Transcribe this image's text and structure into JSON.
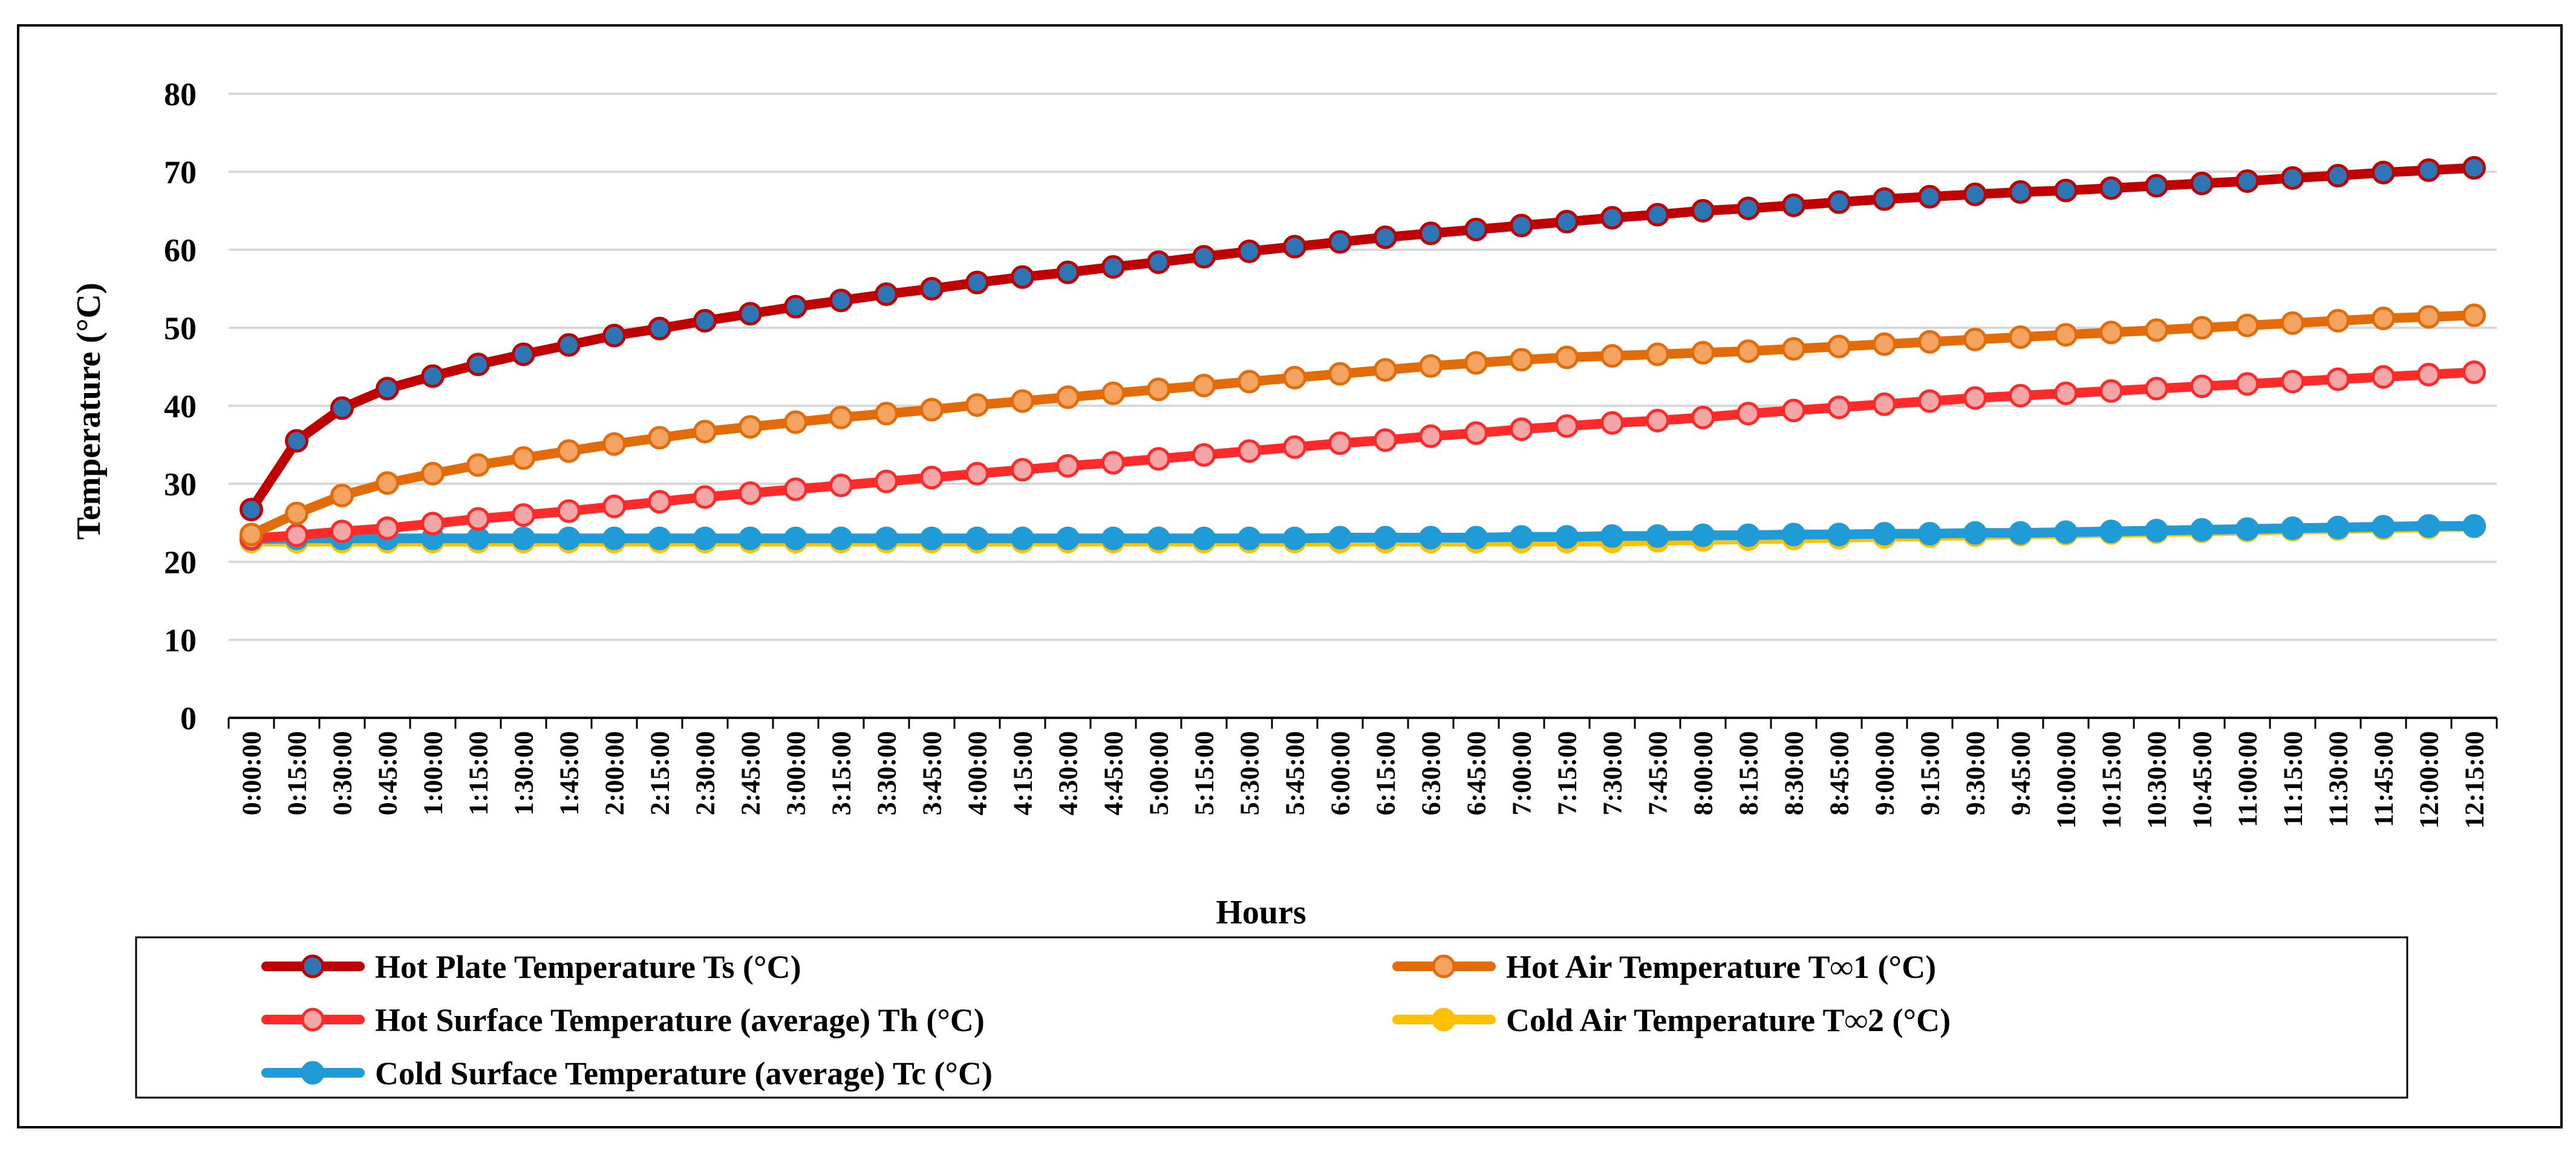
{
  "chart_data": {
    "type": "line",
    "title": "",
    "xlabel": "Hours",
    "ylabel": "Temperature (°C)",
    "ylim": [
      0,
      80
    ],
    "yticks": [
      0,
      10,
      20,
      30,
      40,
      50,
      60,
      70,
      80
    ],
    "grid": true,
    "legend_position": "bottom",
    "categories": [
      "0:00:00",
      "0:15:00",
      "0:30:00",
      "0:45:00",
      "1:00:00",
      "1:15:00",
      "1:30:00",
      "1:45:00",
      "2:00:00",
      "2:15:00",
      "2:30:00",
      "2:45:00",
      "3:00:00",
      "3:15:00",
      "3:30:00",
      "3:45:00",
      "4:00:00",
      "4:15:00",
      "4:30:00",
      "4:45:00",
      "5:00:00",
      "5:15:00",
      "5:30:00",
      "5:45:00",
      "6:00:00",
      "6:15:00",
      "6:30:00",
      "6:45:00",
      "7:00:00",
      "7:15:00",
      "7:30:00",
      "7:45:00",
      "8:00:00",
      "8:15:00",
      "8:30:00",
      "8:45:00",
      "9:00:00",
      "9:15:00",
      "9:30:00",
      "9:45:00",
      "10:00:00",
      "10:15:00",
      "10:30:00",
      "10:45:00",
      "11:00:00",
      "11:15:00",
      "11:30:00",
      "11:45:00",
      "12:00:00",
      "12:15:00"
    ],
    "series": [
      {
        "name": "Hot Plate Temperature Ts (°C)",
        "line_color": "#C00000",
        "marker_fill": "#2E75B6",
        "marker_stroke": "#C00000",
        "values": [
          26.7,
          35.5,
          39.7,
          42.2,
          43.8,
          45.3,
          46.6,
          47.8,
          49.0,
          49.9,
          50.9,
          51.8,
          52.7,
          53.5,
          54.3,
          55.0,
          55.8,
          56.5,
          57.1,
          57.8,
          58.4,
          59.1,
          59.8,
          60.4,
          61.0,
          61.6,
          62.1,
          62.6,
          63.1,
          63.6,
          64.1,
          64.5,
          65.0,
          65.3,
          65.7,
          66.1,
          66.5,
          66.8,
          67.1,
          67.4,
          67.6,
          67.9,
          68.2,
          68.5,
          68.8,
          69.2,
          69.5,
          69.9,
          70.2,
          70.5
        ]
      },
      {
        "name": "Hot Air Temperature  T∞1 (°C)",
        "line_color": "#E36C0A",
        "marker_fill": "#F4A460",
        "marker_stroke": "#E36C0A",
        "values": [
          23.5,
          26.2,
          28.5,
          30.1,
          31.3,
          32.4,
          33.3,
          34.2,
          35.1,
          35.9,
          36.7,
          37.3,
          37.9,
          38.5,
          39.0,
          39.5,
          40.1,
          40.6,
          41.1,
          41.6,
          42.1,
          42.6,
          43.1,
          43.6,
          44.1,
          44.6,
          45.1,
          45.5,
          45.9,
          46.2,
          46.4,
          46.6,
          46.8,
          47.0,
          47.3,
          47.6,
          47.9,
          48.2,
          48.5,
          48.8,
          49.1,
          49.4,
          49.7,
          50.0,
          50.3,
          50.6,
          50.9,
          51.2,
          51.4,
          51.6
        ]
      },
      {
        "name": " Hot Surface Temperature (average)  Th (°C)",
        "line_color": "#FF2A2A",
        "marker_fill": "#F4A6A6",
        "marker_stroke": "#FF2A2A",
        "values": [
          23.0,
          23.4,
          23.9,
          24.3,
          24.9,
          25.5,
          26.0,
          26.5,
          27.1,
          27.7,
          28.3,
          28.8,
          29.3,
          29.8,
          30.3,
          30.8,
          31.3,
          31.8,
          32.3,
          32.7,
          33.2,
          33.7,
          34.2,
          34.7,
          35.2,
          35.6,
          36.1,
          36.5,
          37.0,
          37.4,
          37.8,
          38.1,
          38.5,
          39.0,
          39.4,
          39.8,
          40.2,
          40.6,
          41.0,
          41.3,
          41.6,
          41.9,
          42.2,
          42.5,
          42.8,
          43.1,
          43.4,
          43.7,
          44.0,
          44.3
        ]
      },
      {
        "name": "Cold Air Temperature  T∞2 (°C)",
        "line_color": "#FFC000",
        "marker_fill": "#FFC000",
        "marker_stroke": "#FFC000",
        "values": [
          22.6,
          22.6,
          22.6,
          22.6,
          22.6,
          22.6,
          22.6,
          22.6,
          22.6,
          22.6,
          22.6,
          22.6,
          22.6,
          22.6,
          22.6,
          22.6,
          22.6,
          22.6,
          22.6,
          22.6,
          22.6,
          22.6,
          22.6,
          22.6,
          22.6,
          22.6,
          22.6,
          22.6,
          22.6,
          22.6,
          22.6,
          22.7,
          22.8,
          22.9,
          23.0,
          23.1,
          23.2,
          23.3,
          23.4,
          23.5,
          23.6,
          23.7,
          23.8,
          23.9,
          24.0,
          24.1,
          24.2,
          24.3,
          24.4,
          24.5
        ]
      },
      {
        "name": "Cold Surface Temperature (average) Tc (°C)",
        "line_color": "#1F9BD7",
        "marker_fill": "#1F9BD7",
        "marker_stroke": "#1F9BD7",
        "values": [
          22.9,
          23.0,
          23.0,
          23.0,
          23.0,
          23.0,
          23.0,
          23.0,
          23.0,
          23.0,
          23.0,
          23.0,
          23.0,
          23.0,
          23.0,
          23.0,
          23.0,
          23.0,
          23.0,
          23.0,
          23.0,
          23.0,
          23.0,
          23.0,
          23.1,
          23.1,
          23.1,
          23.1,
          23.2,
          23.2,
          23.3,
          23.3,
          23.4,
          23.4,
          23.5,
          23.5,
          23.6,
          23.6,
          23.7,
          23.7,
          23.8,
          23.9,
          24.0,
          24.1,
          24.2,
          24.3,
          24.4,
          24.5,
          24.6,
          24.6
        ]
      }
    ]
  }
}
